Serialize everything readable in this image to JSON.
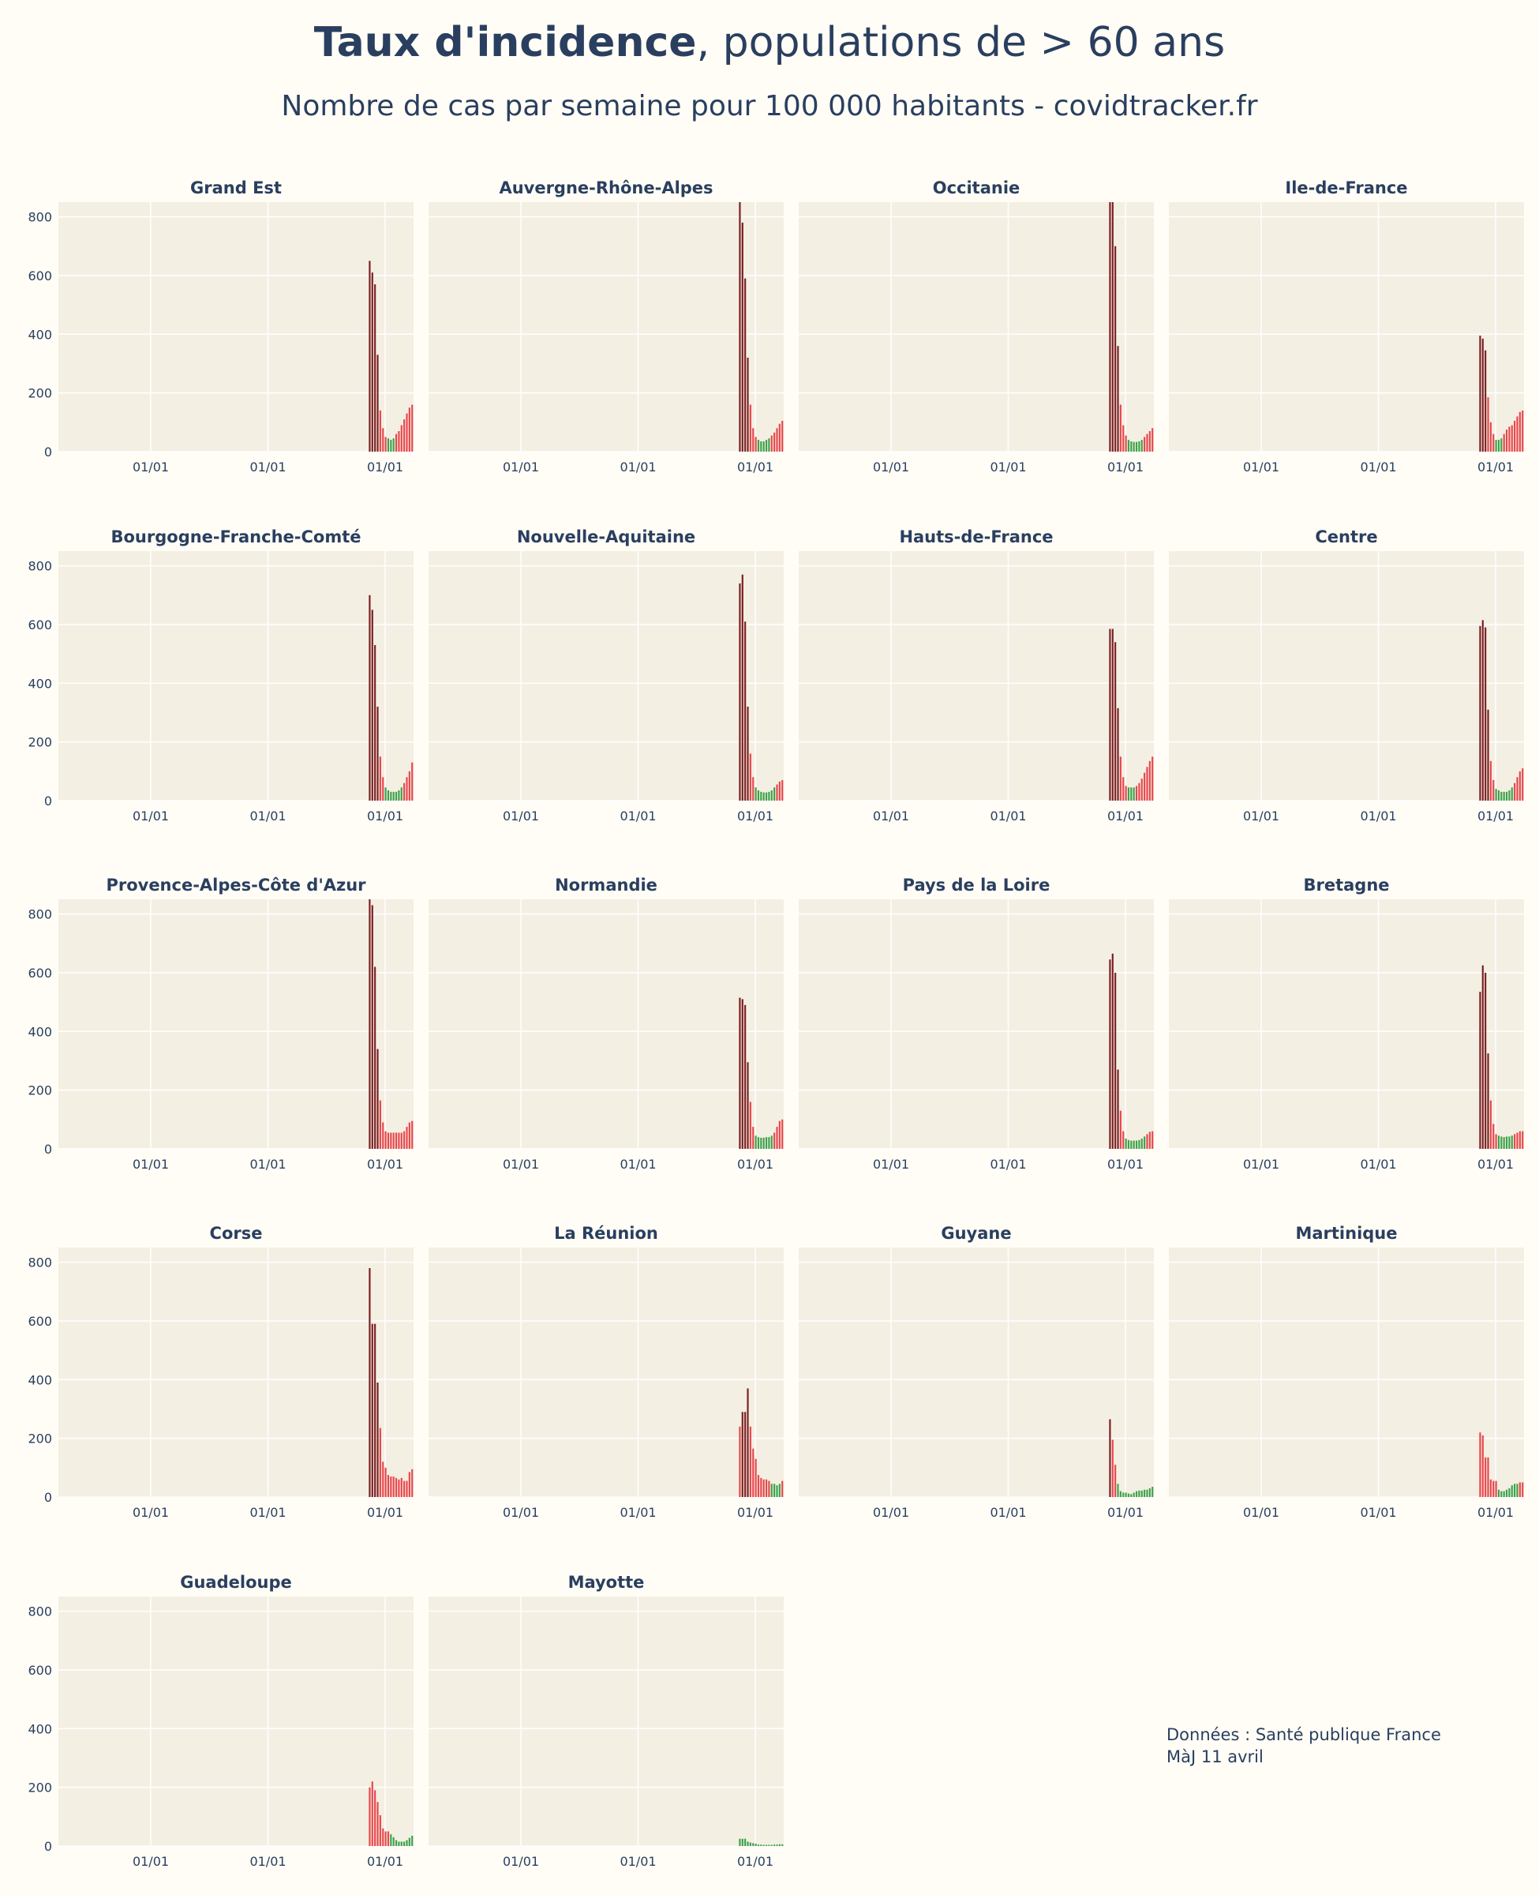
{
  "header": {
    "title_bold": "Taux d'incidence",
    "title_rest": ", populations de > 60 ans",
    "subtitle": "Nombre de cas par semaine pour 100 000 habitants - covidtracker.fr"
  },
  "footer": {
    "source": "Données : Santé publique France",
    "updated": "MàJ 11 avril"
  },
  "colors": {
    "background": "#fffdf6",
    "plot_background": "#f4efe3",
    "grid": "#ffffff",
    "text": "#2a3f5f",
    "bar_high": "#7a1f22",
    "bar_mid": "#e8474c",
    "bar_low": "#3ca24a"
  },
  "chart_data": {
    "type": "bar",
    "yaxis_ticks": [
      0,
      200,
      400,
      600,
      800
    ],
    "ylim": [
      0,
      850
    ],
    "xaxis_tick_labels": [
      "01/01",
      "01/01",
      "01/01"
    ],
    "grid": true,
    "panels": [
      {
        "name": "Grand Est",
        "values": [
          650,
          610,
          570,
          330,
          140,
          80,
          50,
          45,
          40,
          45,
          60,
          70,
          90,
          110,
          130,
          150,
          160
        ]
      },
      {
        "name": "Auvergne-Rhône-Alpes",
        "values": [
          850,
          780,
          590,
          320,
          160,
          80,
          50,
          40,
          35,
          35,
          40,
          45,
          55,
          65,
          80,
          95,
          105
        ]
      },
      {
        "name": "Occitanie",
        "values": [
          850,
          850,
          700,
          360,
          160,
          90,
          55,
          40,
          35,
          33,
          33,
          35,
          40,
          50,
          60,
          70,
          80
        ]
      },
      {
        "name": "Ile-de-France",
        "values": [
          395,
          385,
          345,
          185,
          100,
          60,
          40,
          40,
          45,
          60,
          75,
          85,
          90,
          105,
          120,
          135,
          140
        ]
      },
      {
        "name": "Bourgogne-Franche-Comté",
        "values": [
          700,
          650,
          530,
          320,
          150,
          80,
          45,
          35,
          30,
          30,
          30,
          35,
          45,
          60,
          80,
          100,
          130
        ]
      },
      {
        "name": "Nouvelle-Aquitaine",
        "values": [
          740,
          770,
          610,
          320,
          160,
          80,
          45,
          35,
          30,
          28,
          28,
          30,
          35,
          45,
          55,
          65,
          70
        ]
      },
      {
        "name": "Hauts-de-France",
        "values": [
          585,
          585,
          540,
          315,
          150,
          80,
          50,
          45,
          45,
          45,
          50,
          60,
          75,
          95,
          115,
          135,
          150
        ]
      },
      {
        "name": "Centre",
        "values": [
          595,
          615,
          590,
          310,
          135,
          70,
          40,
          35,
          30,
          30,
          30,
          35,
          45,
          60,
          80,
          100,
          110
        ]
      },
      {
        "name": "Provence-Alpes-Côte d'Azur",
        "values": [
          850,
          830,
          620,
          340,
          165,
          90,
          60,
          55,
          55,
          55,
          55,
          55,
          55,
          60,
          75,
          90,
          95
        ]
      },
      {
        "name": "Normandie",
        "values": [
          515,
          510,
          490,
          295,
          160,
          75,
          45,
          40,
          38,
          38,
          40,
          40,
          45,
          55,
          75,
          95,
          100
        ]
      },
      {
        "name": "Pays de la Loire",
        "values": [
          645,
          665,
          600,
          270,
          130,
          60,
          35,
          30,
          28,
          28,
          28,
          30,
          35,
          42,
          50,
          58,
          60
        ]
      },
      {
        "name": "Bretagne",
        "values": [
          535,
          625,
          600,
          325,
          165,
          85,
          50,
          45,
          42,
          40,
          42,
          42,
          45,
          50,
          55,
          60,
          60
        ]
      },
      {
        "name": "Corse",
        "values": [
          780,
          590,
          590,
          390,
          235,
          120,
          100,
          75,
          70,
          70,
          65,
          60,
          65,
          55,
          55,
          85,
          95
        ]
      },
      {
        "name": "La Réunion",
        "values": [
          240,
          290,
          290,
          370,
          240,
          165,
          130,
          75,
          65,
          60,
          60,
          55,
          45,
          45,
          40,
          45,
          55
        ]
      },
      {
        "name": "Guyane",
        "values": [
          265,
          195,
          110,
          45,
          20,
          15,
          15,
          12,
          10,
          15,
          20,
          22,
          22,
          25,
          25,
          30,
          35
        ]
      },
      {
        "name": "Martinique",
        "values": [
          220,
          210,
          135,
          135,
          60,
          55,
          55,
          25,
          20,
          20,
          25,
          30,
          40,
          45,
          45,
          50,
          50
        ]
      },
      {
        "name": "Guadeloupe",
        "values": [
          200,
          220,
          190,
          150,
          105,
          60,
          50,
          50,
          40,
          30,
          20,
          15,
          15,
          15,
          20,
          28,
          35
        ]
      },
      {
        "name": "Mayotte",
        "values": [
          25,
          25,
          25,
          15,
          12,
          10,
          8,
          5,
          5,
          4,
          4,
          4,
          4,
          5,
          5,
          6,
          6
        ]
      }
    ]
  }
}
